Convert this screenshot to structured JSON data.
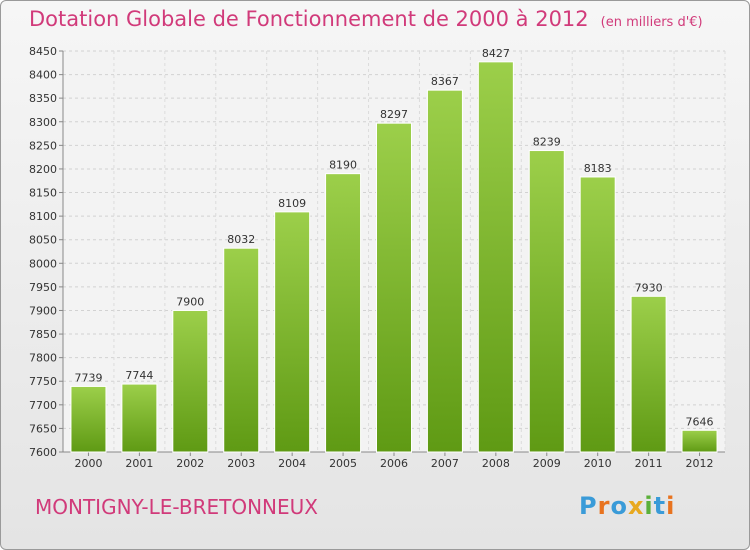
{
  "title": "Dotation Globale de Fonctionnement de 2000 à 2012",
  "subtitle": "(en milliers d'€)",
  "commune": "MONTIGNY-LE-BRETONNEUX",
  "logo_text": "Proxiti",
  "colors": {
    "accent": "#d13a7a",
    "bar_top": "#9ccf4a",
    "bar_bottom": "#5f9a14",
    "background": "#efefef"
  },
  "chart_data": {
    "type": "bar",
    "title": "Dotation Globale de Fonctionnement de 2000 à 2012",
    "subtitle": "(en milliers d'€)",
    "categories": [
      "2000",
      "2001",
      "2002",
      "2003",
      "2004",
      "2005",
      "2006",
      "2007",
      "2008",
      "2009",
      "2010",
      "2011",
      "2012"
    ],
    "values": [
      7739,
      7744,
      7900,
      8032,
      8109,
      8190,
      8297,
      8367,
      8427,
      8239,
      8183,
      7930,
      7646
    ],
    "ylim": [
      7600,
      8450
    ],
    "yticks": [
      7600,
      7650,
      7700,
      7750,
      7800,
      7850,
      7900,
      7950,
      8000,
      8050,
      8100,
      8150,
      8200,
      8250,
      8300,
      8350,
      8400,
      8450
    ],
    "grid": true,
    "legend": "none"
  }
}
